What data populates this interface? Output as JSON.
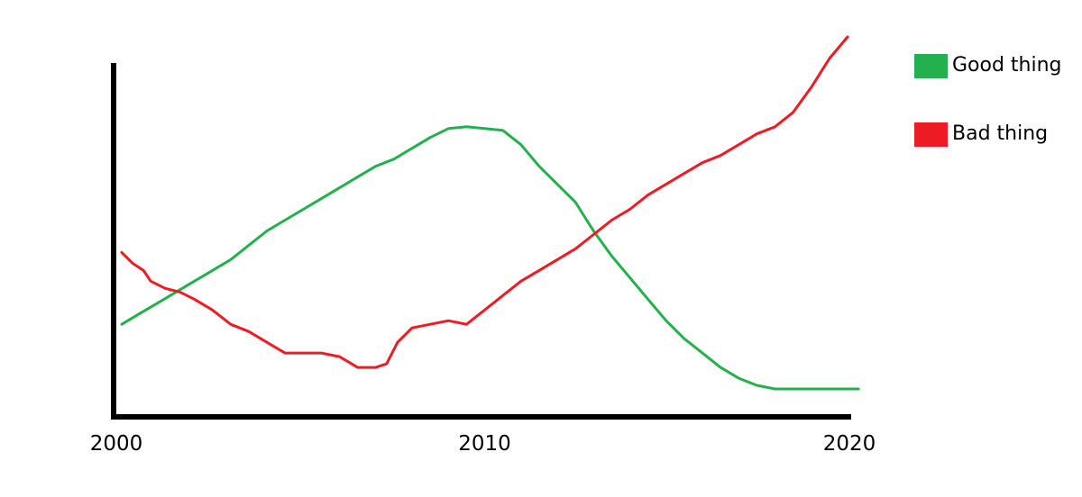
{
  "chart_data": {
    "type": "line",
    "xlim": [
      2000,
      2020
    ],
    "ylim": [
      0,
      100
    ],
    "x_ticks": [
      "2000",
      "2010",
      "2020"
    ],
    "grid": false,
    "legend_position": "top-right",
    "axis_color": "#000000",
    "series": [
      {
        "name": "Good thing",
        "color": "#22b14c",
        "points": [
          [
            2000.0,
            21
          ],
          [
            2000.5,
            24
          ],
          [
            2001.0,
            27
          ],
          [
            2001.5,
            30
          ],
          [
            2002.0,
            33
          ],
          [
            2002.5,
            36
          ],
          [
            2003.0,
            39
          ],
          [
            2003.5,
            43
          ],
          [
            2004.0,
            47
          ],
          [
            2004.5,
            50
          ],
          [
            2005.0,
            53
          ],
          [
            2005.5,
            56
          ],
          [
            2006.0,
            59
          ],
          [
            2006.5,
            62
          ],
          [
            2007.0,
            65
          ],
          [
            2007.5,
            67
          ],
          [
            2008.0,
            70
          ],
          [
            2008.5,
            73
          ],
          [
            2009.0,
            75.5
          ],
          [
            2009.5,
            76
          ],
          [
            2010.0,
            75.5
          ],
          [
            2010.5,
            75
          ],
          [
            2011.0,
            71
          ],
          [
            2011.5,
            65
          ],
          [
            2012.0,
            60
          ],
          [
            2012.5,
            55
          ],
          [
            2013.0,
            47
          ],
          [
            2013.5,
            40
          ],
          [
            2014.0,
            34
          ],
          [
            2014.5,
            28
          ],
          [
            2015.0,
            22
          ],
          [
            2015.5,
            17
          ],
          [
            2016.0,
            13
          ],
          [
            2016.5,
            9
          ],
          [
            2017.0,
            6
          ],
          [
            2017.5,
            4
          ],
          [
            2018.0,
            3
          ],
          [
            2018.5,
            3
          ],
          [
            2019.0,
            3
          ],
          [
            2019.5,
            3
          ],
          [
            2020.3,
            3
          ]
        ]
      },
      {
        "name": "Bad thing",
        "color": "#ed1c24",
        "points": [
          [
            2000.0,
            41
          ],
          [
            2000.3,
            38
          ],
          [
            2000.6,
            36
          ],
          [
            2000.8,
            33
          ],
          [
            2001.2,
            31
          ],
          [
            2001.6,
            30
          ],
          [
            2002.0,
            28
          ],
          [
            2002.5,
            25
          ],
          [
            2003.0,
            21
          ],
          [
            2003.5,
            19
          ],
          [
            2004.0,
            16
          ],
          [
            2004.5,
            13
          ],
          [
            2005.0,
            13
          ],
          [
            2005.5,
            13
          ],
          [
            2006.0,
            12
          ],
          [
            2006.5,
            9
          ],
          [
            2007.0,
            9
          ],
          [
            2007.3,
            10
          ],
          [
            2007.6,
            16
          ],
          [
            2008.0,
            20
          ],
          [
            2008.5,
            21
          ],
          [
            2009.0,
            22
          ],
          [
            2009.5,
            21
          ],
          [
            2010.0,
            25
          ],
          [
            2010.5,
            29
          ],
          [
            2011.0,
            33
          ],
          [
            2011.5,
            36
          ],
          [
            2012.0,
            39
          ],
          [
            2012.5,
            42
          ],
          [
            2013.0,
            46
          ],
          [
            2013.5,
            50
          ],
          [
            2014.0,
            53
          ],
          [
            2014.5,
            57
          ],
          [
            2015.0,
            60
          ],
          [
            2015.5,
            63
          ],
          [
            2016.0,
            66
          ],
          [
            2016.5,
            68
          ],
          [
            2017.0,
            71
          ],
          [
            2017.5,
            74
          ],
          [
            2018.0,
            76
          ],
          [
            2018.5,
            80
          ],
          [
            2019.0,
            87
          ],
          [
            2019.5,
            95
          ],
          [
            2020.0,
            101
          ]
        ]
      }
    ]
  }
}
